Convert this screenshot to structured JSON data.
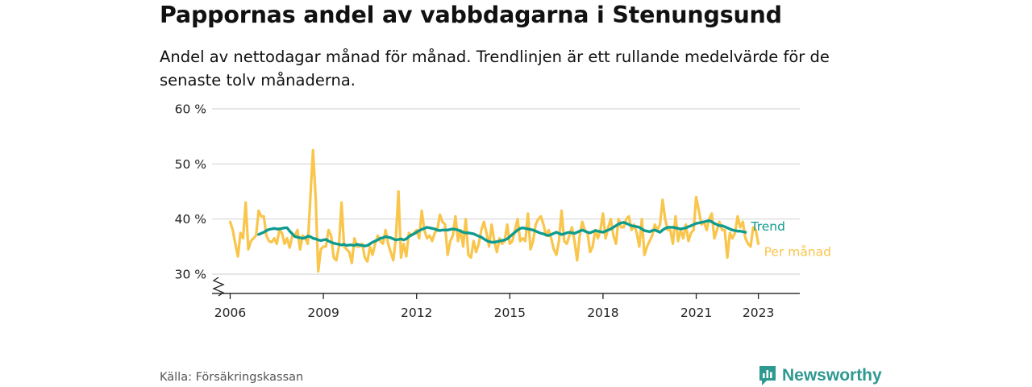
{
  "title": "Pappornas andel av vabbdagarna i Stenungsund",
  "subtitle": "Andel av nettodagar månad för månad. Trendlinjen är ett rullande medelvärde för de senaste tolv månaderna.",
  "source": "Källa: Försäkringskassan",
  "brand": "Newsworthy",
  "colors": {
    "monthly": "#f9c54b",
    "trend": "#0f9b8e",
    "grid": "#d6d6d6",
    "axis": "#222222",
    "brand": "#2d9991"
  },
  "chart_data": {
    "type": "line",
    "title": "Pappornas andel av vabbdagarna i Stenungsund",
    "ylim": [
      26.5,
      60
    ],
    "y_ticks": [
      {
        "value": 30,
        "label": "30 %"
      },
      {
        "value": 40,
        "label": "40 %"
      },
      {
        "value": 50,
        "label": "50 %"
      },
      {
        "value": 60,
        "label": "60 %"
      }
    ],
    "xlim": [
      "2005-06",
      "2024-05"
    ],
    "x_ticks": [
      {
        "value": "2006-01",
        "label": "2006"
      },
      {
        "value": "2009-01",
        "label": "2009"
      },
      {
        "value": "2012-01",
        "label": "2012"
      },
      {
        "value": "2015-01",
        "label": "2015"
      },
      {
        "value": "2018-01",
        "label": "2018"
      },
      {
        "value": "2021-01",
        "label": "2021"
      },
      {
        "value": "2023-01",
        "label": "2023"
      }
    ],
    "grid": "horizontal",
    "axis_break": true,
    "series": [
      {
        "name": "Per månad",
        "start": "2006-01",
        "values": [
          39.5,
          38,
          35.5,
          33.2,
          37.5,
          36.5,
          43,
          34.5,
          36,
          36.5,
          37,
          41.5,
          40.5,
          40.5,
          37,
          36,
          35.8,
          36.5,
          35.5,
          38,
          37.5,
          35.5,
          36.5,
          34.8,
          37,
          37,
          38,
          34.5,
          37,
          36.5,
          35.5,
          44,
          52.5,
          44,
          30.5,
          34.5,
          35,
          35,
          38,
          37,
          33,
          32.5,
          35,
          43,
          35,
          34.5,
          34,
          32,
          36.5,
          35,
          35,
          35.5,
          33,
          32.3,
          35,
          33.5,
          35.5,
          37,
          36,
          35.5,
          38,
          35.5,
          34,
          32.5,
          36.5,
          45,
          33,
          35.5,
          33.2,
          37.5,
          37,
          37.5,
          38,
          36.5,
          41.5,
          38,
          36.5,
          37,
          36,
          37.5,
          38,
          40.8,
          39.5,
          39,
          33.5,
          36,
          37,
          40.5,
          36,
          38,
          35,
          40,
          33.5,
          33,
          36,
          34,
          35.5,
          38,
          39.5,
          37.5,
          35,
          39,
          36,
          34,
          36.5,
          35.5,
          36,
          39,
          35.5,
          36,
          38,
          40,
          36,
          36.5,
          36,
          41,
          34.5,
          36,
          39,
          40,
          40.5,
          39,
          37,
          38,
          36.5,
          34.5,
          33.5,
          36,
          41.5,
          36,
          35.5,
          37,
          38.5,
          36,
          32.5,
          37,
          39.5,
          38,
          37.5,
          34,
          35,
          38,
          36.5,
          38,
          41,
          36.5,
          38.5,
          40,
          37,
          35.5,
          40,
          38.5,
          38.5,
          40,
          40.5,
          38,
          39,
          37.5,
          35,
          40,
          33.5,
          35,
          36,
          37,
          39,
          38,
          39,
          43.5,
          40,
          38,
          38,
          35.5,
          40.5,
          36,
          38,
          36.5,
          39,
          36,
          37.5,
          38,
          44,
          41.5,
          39,
          39.5,
          38,
          40,
          41,
          36.5,
          38,
          39.5,
          38,
          38,
          33,
          37.5,
          36.5,
          37.5,
          40.5,
          38.5,
          39.5,
          36.5,
          35.5,
          35,
          38.5,
          38,
          35.5
        ]
      },
      {
        "name": "Trend",
        "start": "2006-12",
        "values": [
          37.2,
          37.4,
          37.6,
          37.9,
          38.1,
          38.2,
          38.3,
          38.2,
          38.2,
          38.3,
          38.4,
          38.4,
          37.8,
          37.3,
          36.8,
          36.7,
          36.6,
          36.5,
          36.6,
          36.9,
          36.8,
          36.5,
          36.4,
          36.2,
          36.1,
          36.2,
          36.3,
          36,
          35.8,
          35.6,
          35.5,
          35.4,
          35.3,
          35.4,
          35.2,
          35.3,
          35.3,
          35.2,
          35.4,
          35.3,
          35.2,
          35.1,
          35.2,
          35.5,
          35.8,
          36,
          36.2,
          36.5,
          36.6,
          36.8,
          36.7,
          36.6,
          36.4,
          36.2,
          36.3,
          36.4,
          36.2,
          36.4,
          36.8,
          37.1,
          37.3,
          37.6,
          37.9,
          38.1,
          38.3,
          38.5,
          38.4,
          38.3,
          38.2,
          38,
          37.9,
          38,
          38,
          38,
          38.1,
          38.2,
          38.1,
          38,
          37.8,
          37.6,
          37.5,
          37.5,
          37.4,
          37.3,
          37.1,
          36.9,
          36.7,
          36.4,
          36.1,
          35.9,
          35.8,
          35.8,
          35.9,
          36,
          36.1,
          36.2,
          36.4,
          36.8,
          37.2,
          37.6,
          38,
          38.3,
          38.4,
          38.3,
          38.2,
          38.1,
          38,
          37.8,
          37.6,
          37.4,
          37.3,
          37.1,
          37,
          37.2,
          37.4,
          37.6,
          37.4,
          37.2,
          37.3,
          37.5,
          37.6,
          37.5,
          37.4,
          37.6,
          37.8,
          38,
          37.8,
          37.6,
          37.5,
          37.7,
          37.9,
          37.8,
          37.7,
          37.6,
          37.8,
          38,
          38.2,
          38.5,
          38.8,
          39.1,
          39.3,
          39.4,
          39.2,
          39,
          38.8,
          38.7,
          38.6,
          38.5,
          38.2,
          37.9,
          37.8,
          37.7,
          37.9,
          38,
          37.8,
          37.6,
          38,
          38.3,
          38.5,
          38.5,
          38.5,
          38.4,
          38.3,
          38.2,
          38.3,
          38.4,
          38.6,
          38.8,
          39,
          39.2,
          39.3,
          39.4,
          39.5,
          39.6,
          39.7,
          39.5,
          39.2,
          39,
          38.8,
          38.8,
          38.6,
          38.4,
          38.2,
          38,
          37.9,
          37.8,
          37.8,
          37.7,
          37.6
        ]
      }
    ]
  }
}
